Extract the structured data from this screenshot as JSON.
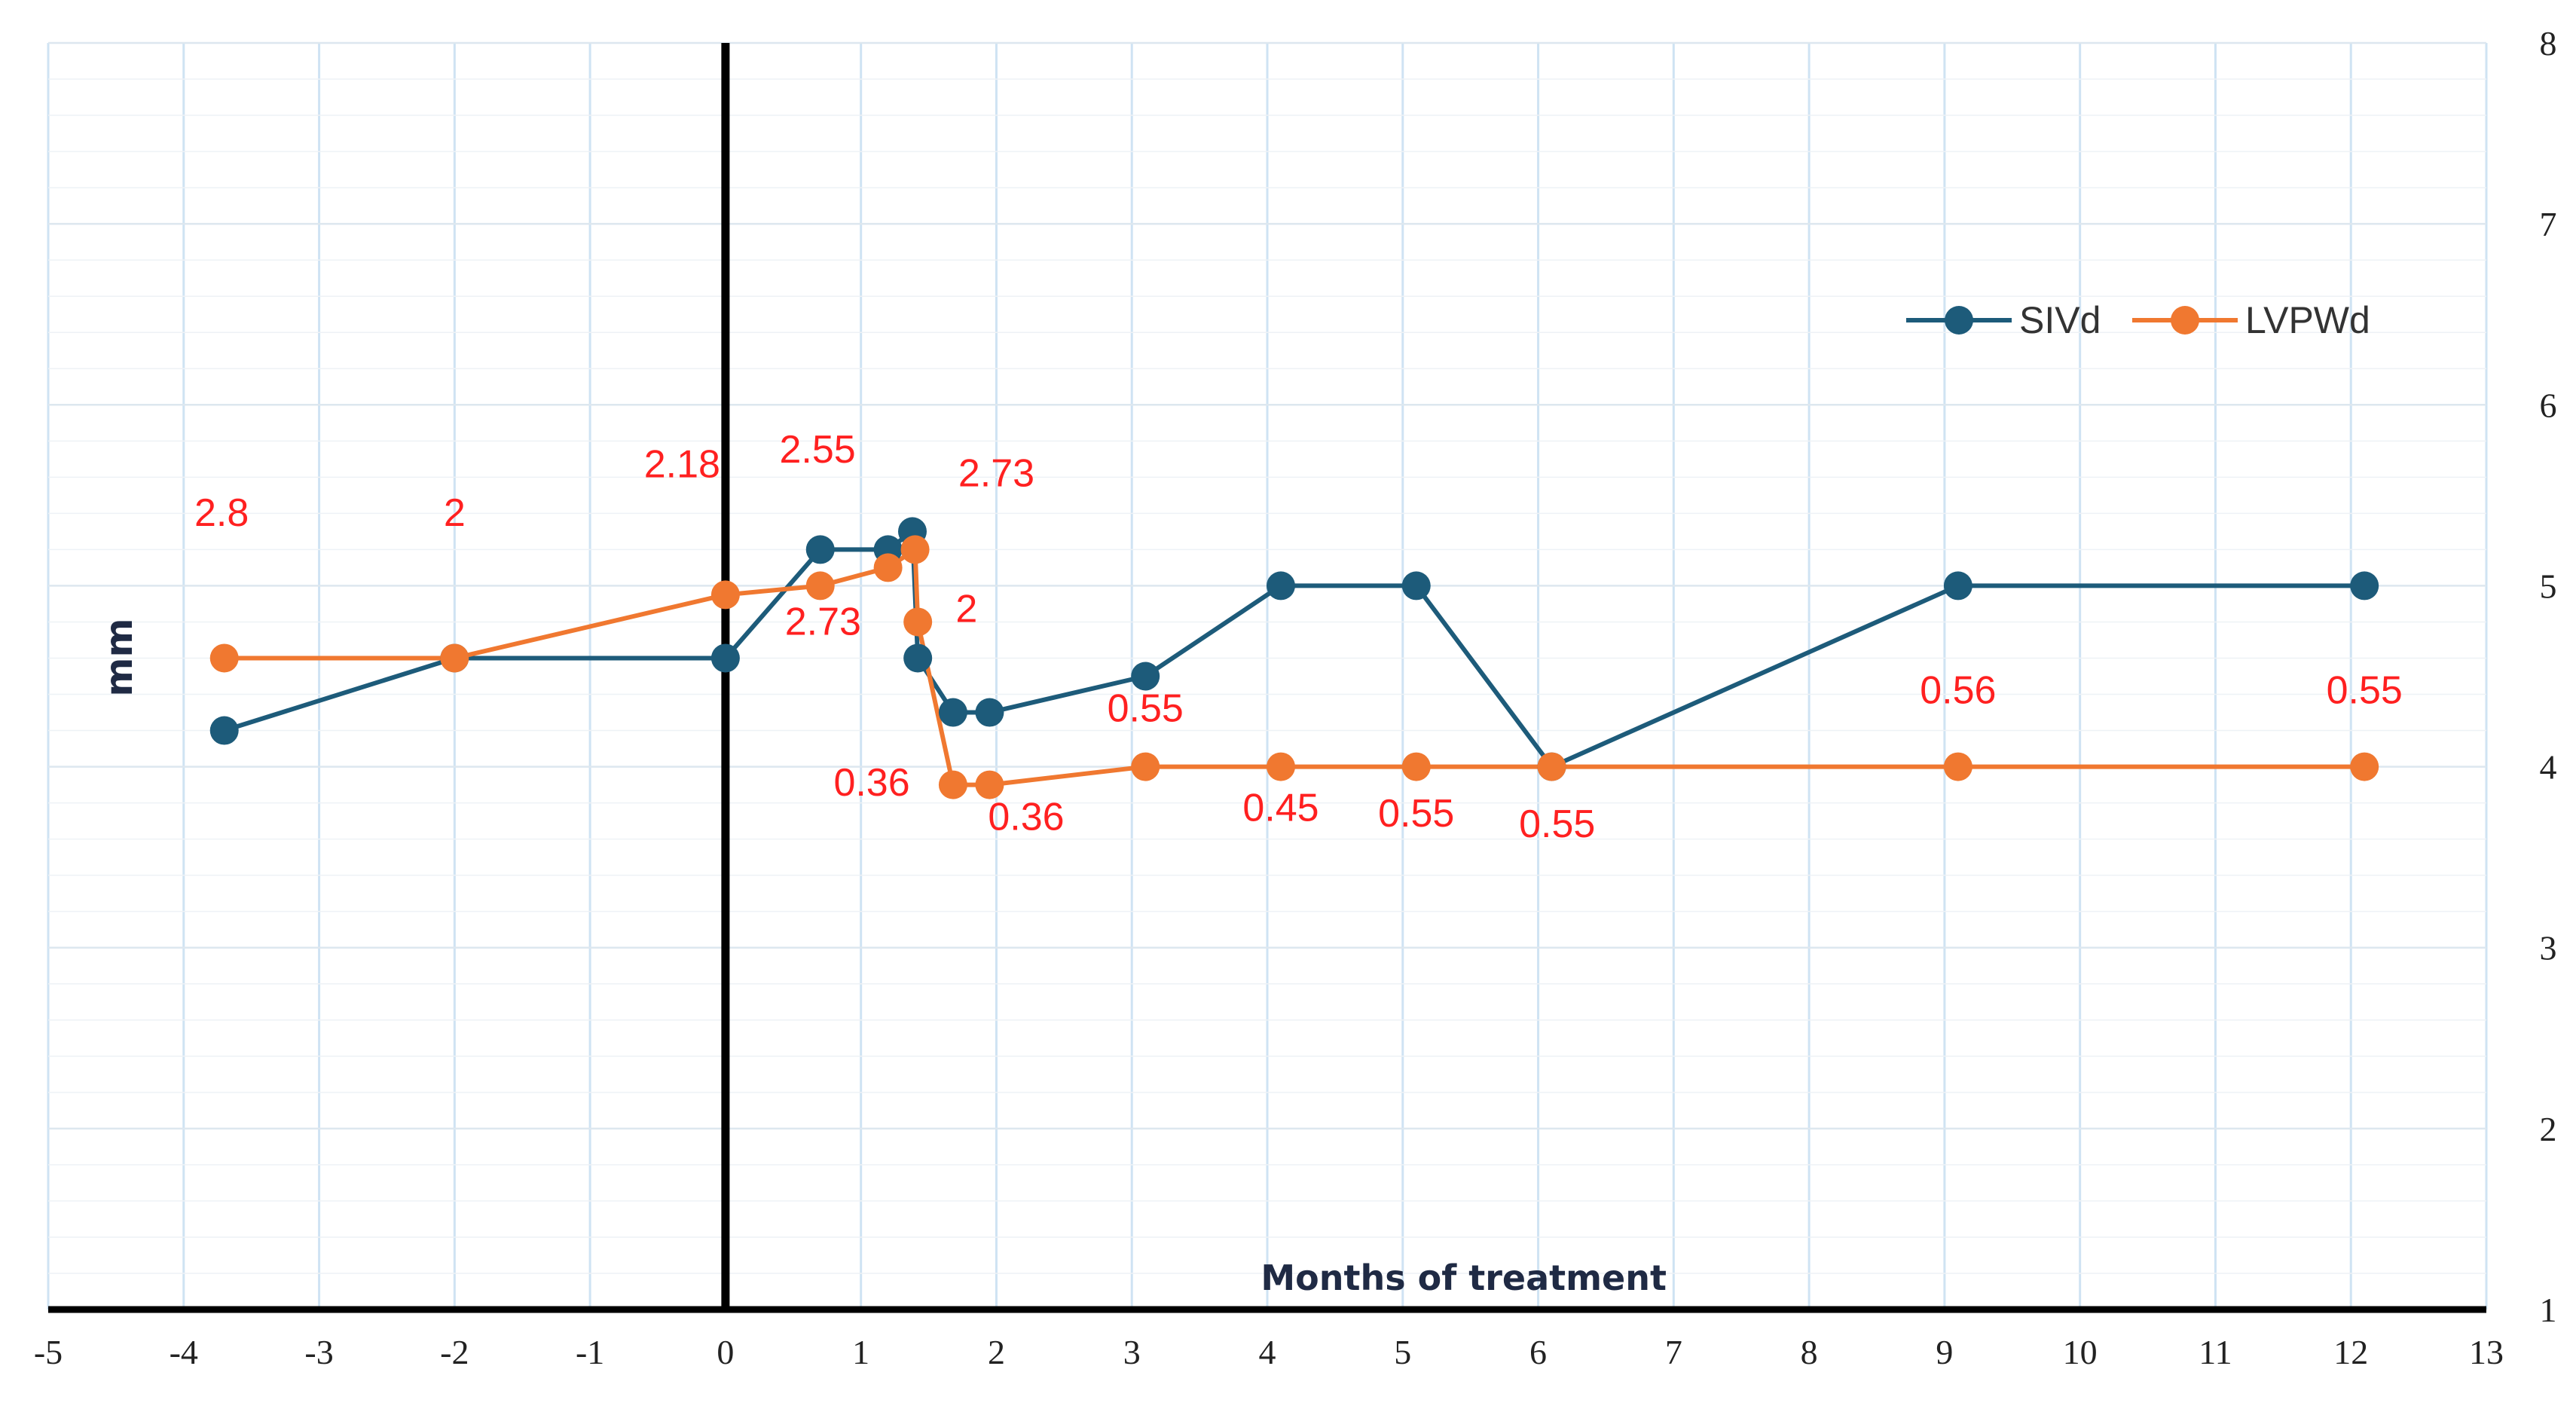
{
  "chart_data": {
    "type": "line",
    "title": "",
    "xlabel": "Months of treatment",
    "ylabel": "mm",
    "xlim": [
      -5,
      13
    ],
    "ylim": [
      1,
      8
    ],
    "x_ticks": [
      -5,
      -4,
      -3,
      -2,
      -1,
      0,
      1,
      2,
      3,
      4,
      5,
      6,
      7,
      8,
      9,
      10,
      11,
      12,
      13
    ],
    "y_ticks": [
      1,
      2,
      3,
      4,
      5,
      6,
      7,
      8
    ],
    "y_axis_side": "right",
    "grid": true,
    "reference_line_x": 0,
    "legend_position": "top-right",
    "series": [
      {
        "name": "SIVd",
        "color": "#1d5b7a",
        "points": [
          {
            "x": -3.7,
            "y": 4.2
          },
          {
            "x": -2.0,
            "y": 4.6
          },
          {
            "x": 0.0,
            "y": 4.6
          },
          {
            "x": 0.7,
            "y": 5.2
          },
          {
            "x": 1.2,
            "y": 5.2
          },
          {
            "x": 1.38,
            "y": 5.3
          },
          {
            "x": 1.42,
            "y": 4.6
          },
          {
            "x": 1.68,
            "y": 4.3
          },
          {
            "x": 1.95,
            "y": 4.3
          },
          {
            "x": 3.1,
            "y": 4.5
          },
          {
            "x": 4.1,
            "y": 5.0
          },
          {
            "x": 5.1,
            "y": 5.0
          },
          {
            "x": 6.1,
            "y": 4.0
          },
          {
            "x": 9.1,
            "y": 5.0
          },
          {
            "x": 12.1,
            "y": 5.0
          }
        ]
      },
      {
        "name": "LVPWd",
        "color": "#f07830",
        "points": [
          {
            "x": -3.7,
            "y": 4.6
          },
          {
            "x": -2.0,
            "y": 4.6
          },
          {
            "x": 0.0,
            "y": 4.95
          },
          {
            "x": 0.7,
            "y": 5.0
          },
          {
            "x": 1.2,
            "y": 5.1
          },
          {
            "x": 1.4,
            "y": 5.2
          },
          {
            "x": 1.42,
            "y": 4.8
          },
          {
            "x": 1.68,
            "y": 3.9
          },
          {
            "x": 1.95,
            "y": 3.9
          },
          {
            "x": 3.1,
            "y": 4.0
          },
          {
            "x": 4.1,
            "y": 4.0
          },
          {
            "x": 5.1,
            "y": 4.0
          },
          {
            "x": 6.1,
            "y": 4.0
          },
          {
            "x": 9.1,
            "y": 4.0
          },
          {
            "x": 12.1,
            "y": 4.0
          }
        ]
      }
    ],
    "annotations": [
      {
        "text": "2.8",
        "x": -3.72,
        "y": 5.33
      },
      {
        "text": "2",
        "x": -2.0,
        "y": 5.33
      },
      {
        "text": "2.18",
        "x": -0.32,
        "y": 5.6
      },
      {
        "text": "2.55",
        "x": 0.68,
        "y": 5.68
      },
      {
        "text": "2.73",
        "x": 2.0,
        "y": 5.55
      },
      {
        "text": "2.73",
        "x": 0.72,
        "y": 4.73
      },
      {
        "text": "2",
        "x": 1.78,
        "y": 4.8
      },
      {
        "text": "0.55",
        "x": 3.1,
        "y": 4.25
      },
      {
        "text": "0.36",
        "x": 1.08,
        "y": 3.84
      },
      {
        "text": "0.36",
        "x": 2.22,
        "y": 3.65
      },
      {
        "text": "0.45",
        "x": 4.1,
        "y": 3.7
      },
      {
        "text": "0.55",
        "x": 5.1,
        "y": 3.67
      },
      {
        "text": "0.55",
        "x": 6.14,
        "y": 3.61
      },
      {
        "text": "0.56",
        "x": 9.1,
        "y": 4.35
      },
      {
        "text": "0.55",
        "x": 12.1,
        "y": 4.35
      }
    ]
  }
}
